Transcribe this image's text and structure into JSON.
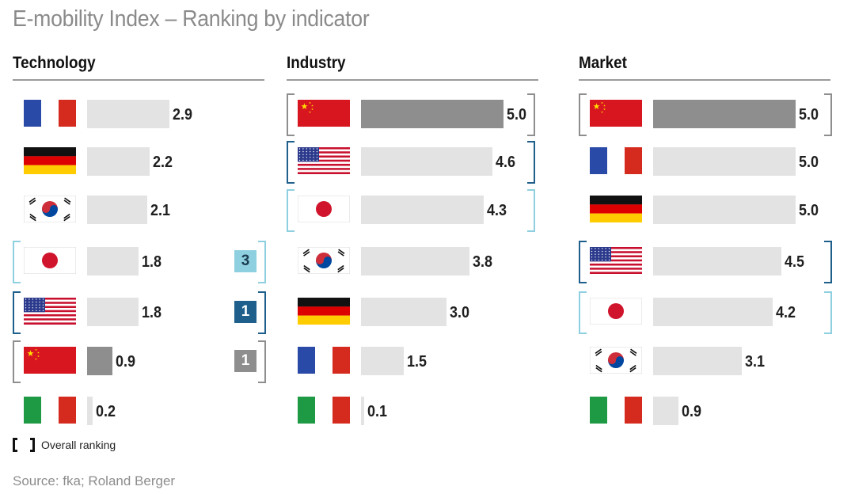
{
  "title": "E-mobility Index – Ranking by indicator",
  "legend_label": "Overall ranking",
  "source": "Source: fka; Roland Berger",
  "colors": {
    "bar_default": "#e3e3e3",
    "bar_highlight": "#8e8e8e",
    "rank_1st": "#1e5f8c",
    "rank_2nd": "#8e8e8e",
    "rank_3rd": "#8fd0e0",
    "rule": "#9a9a9a"
  },
  "chart_data": [
    {
      "type": "bar",
      "title": "Technology",
      "xlim": [
        0,
        5
      ],
      "categories": [
        "France",
        "Germany",
        "South Korea",
        "Japan",
        "USA",
        "China",
        "Italy"
      ],
      "values": [
        2.9,
        2.2,
        2.1,
        1.8,
        1.8,
        0.9,
        0.2
      ],
      "labels": [
        "2.9",
        "2.2",
        "2.1",
        "1.8",
        "1.8",
        "0.9",
        "0.2"
      ],
      "flags": [
        "fr",
        "de",
        "kr",
        "jp",
        "us",
        "cn",
        "it"
      ],
      "overall_rank": [
        null,
        null,
        null,
        3,
        1,
        1,
        null
      ],
      "rank_labels": [
        "",
        "",
        "",
        "3",
        "1",
        "1",
        ""
      ]
    },
    {
      "type": "bar",
      "title": "Industry",
      "xlim": [
        0,
        5
      ],
      "categories": [
        "China",
        "USA",
        "Japan",
        "South Korea",
        "Germany",
        "France",
        "Italy"
      ],
      "values": [
        5.0,
        4.6,
        4.3,
        3.8,
        3.0,
        1.5,
        0.1
      ],
      "labels": [
        "5.0",
        "4.6",
        "4.3",
        "3.8",
        "3.0",
        "1.5",
        "0.1"
      ],
      "flags": [
        "cn",
        "us",
        "jp",
        "kr",
        "de",
        "fr",
        "it"
      ],
      "overall_rank": [
        1,
        1,
        3,
        null,
        null,
        null,
        null
      ],
      "rank_labels": [
        "",
        "",
        "",
        "",
        "",
        "",
        ""
      ]
    },
    {
      "type": "bar",
      "title": "Market",
      "xlim": [
        0,
        5
      ],
      "categories": [
        "China",
        "France",
        "Germany",
        "USA",
        "Japan",
        "South Korea",
        "Italy"
      ],
      "values": [
        5.0,
        5.0,
        5.0,
        4.5,
        4.2,
        3.1,
        0.9
      ],
      "labels": [
        "5.0",
        "5.0",
        "5.0",
        "4.5",
        "4.2",
        "3.1",
        "0.9"
      ],
      "flags": [
        "cn",
        "fr",
        "de",
        "us",
        "jp",
        "kr",
        "it"
      ],
      "overall_rank": [
        1,
        null,
        null,
        1,
        3,
        null,
        null
      ],
      "rank_labels": [
        "",
        "",
        "",
        "",
        "",
        "",
        ""
      ]
    }
  ]
}
